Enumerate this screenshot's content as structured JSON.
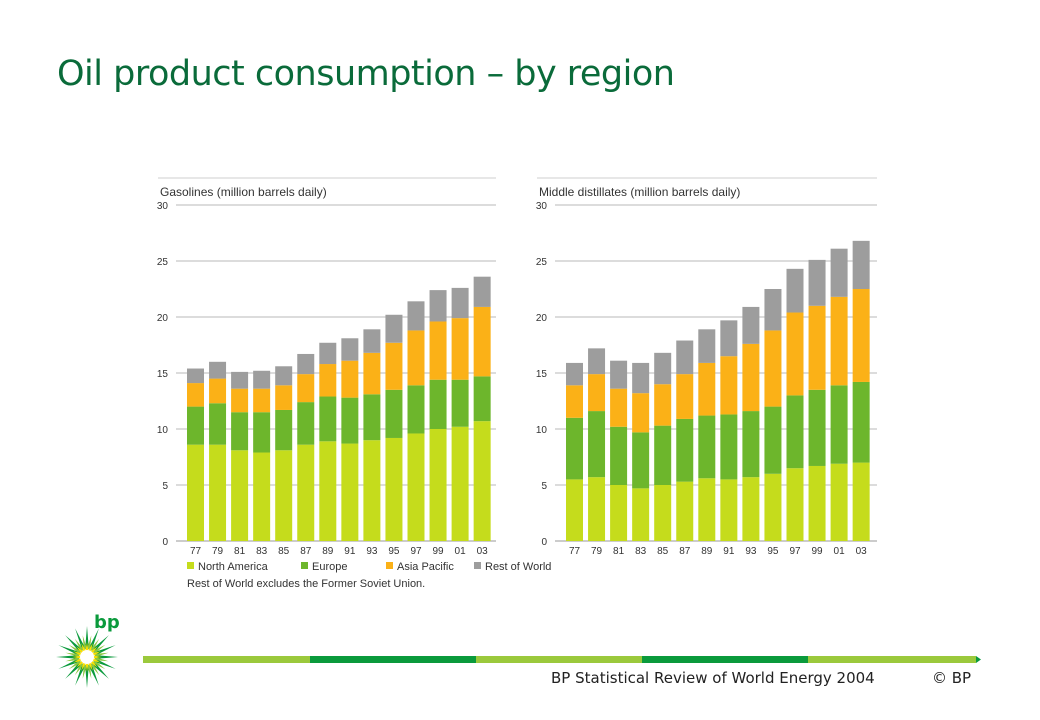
{
  "slide": {
    "title": "Oil product consumption – by region",
    "footer_source": "BP Statistical Review of World Energy 2004",
    "footer_copyright": "© BP",
    "logo_text": "bp"
  },
  "colors": {
    "title": "#0a6b3a",
    "north_america": "#c5dc1c",
    "europe": "#6db62c",
    "asia_pacific": "#fbb117",
    "rest_of_world": "#9d9d9d",
    "footer_light": "#9bc93c",
    "footer_dark": "#0a9a3c"
  },
  "chart_data": [
    {
      "type": "bar",
      "stacked": true,
      "title": "Gasolines (million barrels daily)",
      "categories": [
        "77",
        "79",
        "81",
        "83",
        "85",
        "87",
        "89",
        "91",
        "93",
        "95",
        "97",
        "99",
        "01",
        "03"
      ],
      "ylim": [
        0,
        30
      ],
      "yticks": [
        0,
        5,
        10,
        15,
        20,
        25,
        30
      ],
      "grid": true,
      "series": [
        {
          "name": "North America",
          "values": [
            8.6,
            8.6,
            8.1,
            7.9,
            8.1,
            8.6,
            8.9,
            8.7,
            9.0,
            9.2,
            9.6,
            10.0,
            10.2,
            10.7
          ]
        },
        {
          "name": "Europe",
          "values": [
            3.4,
            3.7,
            3.4,
            3.6,
            3.6,
            3.8,
            4.0,
            4.1,
            4.1,
            4.3,
            4.3,
            4.4,
            4.2,
            4.0
          ]
        },
        {
          "name": "Asia Pacific",
          "values": [
            2.1,
            2.2,
            2.1,
            2.1,
            2.2,
            2.5,
            2.9,
            3.3,
            3.7,
            4.2,
            4.9,
            5.2,
            5.5,
            6.2
          ]
        },
        {
          "name": "Rest of World",
          "values": [
            1.3,
            1.5,
            1.5,
            1.6,
            1.7,
            1.8,
            1.9,
            2.0,
            2.1,
            2.5,
            2.6,
            2.8,
            2.7,
            2.7
          ]
        }
      ]
    },
    {
      "type": "bar",
      "stacked": true,
      "title": "Middle distillates (million barrels daily)",
      "categories": [
        "77",
        "79",
        "81",
        "83",
        "85",
        "87",
        "89",
        "91",
        "93",
        "95",
        "97",
        "99",
        "01",
        "03"
      ],
      "ylim": [
        0,
        30
      ],
      "yticks": [
        0,
        5,
        10,
        15,
        20,
        25,
        30
      ],
      "grid": true,
      "series": [
        {
          "name": "North America",
          "values": [
            5.5,
            5.7,
            5.0,
            4.7,
            5.0,
            5.3,
            5.6,
            5.5,
            5.7,
            6.0,
            6.5,
            6.7,
            6.9,
            7.0
          ]
        },
        {
          "name": "Europe",
          "values": [
            5.5,
            5.9,
            5.2,
            5.0,
            5.3,
            5.6,
            5.6,
            5.8,
            5.9,
            6.0,
            6.5,
            6.8,
            7.0,
            7.2
          ]
        },
        {
          "name": "Asia Pacific",
          "values": [
            2.9,
            3.3,
            3.4,
            3.5,
            3.7,
            4.0,
            4.7,
            5.2,
            6.0,
            6.8,
            7.4,
            7.5,
            7.9,
            8.3
          ]
        },
        {
          "name": "Rest of World",
          "values": [
            2.0,
            2.3,
            2.5,
            2.7,
            2.8,
            3.0,
            3.0,
            3.2,
            3.3,
            3.7,
            3.9,
            4.1,
            4.3,
            4.3
          ]
        }
      ]
    }
  ],
  "legend": {
    "items": [
      "North America",
      "Europe",
      "Asia Pacific",
      "Rest of World"
    ],
    "note": "Rest of World excludes the Former Soviet Union."
  }
}
